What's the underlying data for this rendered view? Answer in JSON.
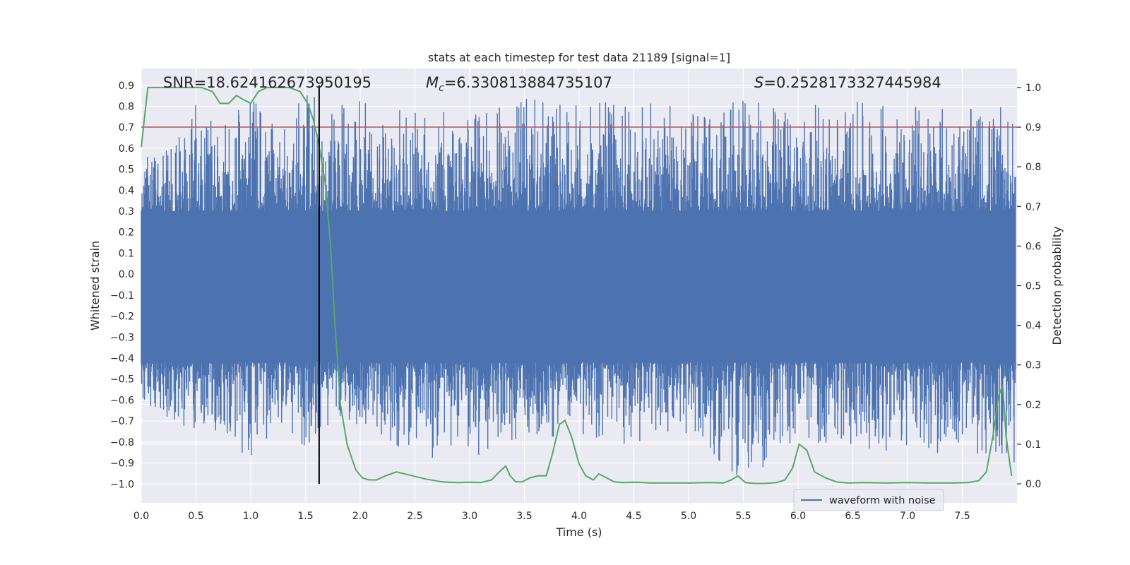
{
  "chart_data": {
    "type": "line",
    "title": "stats at each timestep for test data 21189 [signal=1]",
    "xlabel": "Time (s)",
    "ylabel": "Whitened strain",
    "y2label": "Detection probability",
    "xlim": [
      0.0,
      8.0
    ],
    "ylim": [
      -1.09,
      0.98
    ],
    "y2lim": [
      -0.048,
      1.048
    ],
    "x_ticks": [
      0.0,
      0.5,
      1.0,
      1.5,
      2.0,
      2.5,
      3.0,
      3.5,
      4.0,
      4.5,
      5.0,
      5.5,
      6.0,
      6.5,
      7.0,
      7.5
    ],
    "y_ticks": [
      -1.0,
      -0.9,
      -0.8,
      -0.7,
      -0.6,
      -0.5,
      -0.4,
      -0.3,
      -0.2,
      -0.1,
      0.0,
      0.1,
      0.2,
      0.3,
      0.4,
      0.5,
      0.6,
      0.7,
      0.8,
      0.9
    ],
    "y2_ticks": [
      0.0,
      0.1,
      0.2,
      0.3,
      0.4,
      0.5,
      0.6,
      0.7,
      0.8,
      0.9,
      1.0
    ],
    "threshold_y2": 0.9,
    "marker_time": 1.625,
    "waveform_envelope": {
      "x": [
        0.0,
        0.25,
        0.5,
        0.75,
        1.0,
        1.25,
        1.5,
        1.75,
        2.0,
        2.5,
        3.0,
        3.5,
        4.0,
        4.5,
        5.0,
        5.5,
        6.0,
        6.5,
        7.0,
        7.5,
        8.0
      ],
      "upper": [
        0.55,
        0.65,
        0.82,
        0.75,
        0.86,
        0.7,
        0.88,
        0.8,
        0.83,
        0.77,
        0.78,
        0.84,
        0.81,
        0.83,
        0.8,
        0.83,
        0.81,
        0.82,
        0.83,
        0.79,
        0.8
      ],
      "lower": [
        -0.6,
        -0.7,
        -0.8,
        -0.75,
        -0.94,
        -0.7,
        -0.86,
        -0.7,
        -0.72,
        -0.88,
        -0.88,
        -0.78,
        -0.77,
        -0.82,
        -0.77,
        -0.99,
        -0.81,
        -0.82,
        -0.86,
        -0.85,
        -0.93
      ]
    },
    "series": [
      {
        "name": "waveform with noise",
        "color": "#4c72b0",
        "axis": "left"
      },
      {
        "name": "Detection probability",
        "color": "#55a868",
        "axis": "right",
        "x": [
          0.0,
          0.06,
          0.15,
          0.25,
          0.4,
          0.55,
          0.65,
          0.72,
          0.8,
          0.87,
          0.93,
          1.0,
          1.07,
          1.15,
          1.25,
          1.35,
          1.45,
          1.52,
          1.57,
          1.62,
          1.68,
          1.73,
          1.77,
          1.82,
          1.88,
          1.96,
          2.02,
          2.08,
          2.15,
          2.23,
          2.33,
          2.45,
          2.6,
          2.75,
          2.9,
          3.0,
          3.1,
          3.2,
          3.27,
          3.33,
          3.37,
          3.42,
          3.48,
          3.55,
          3.62,
          3.7,
          3.76,
          3.82,
          3.87,
          3.93,
          4.0,
          4.06,
          4.13,
          4.18,
          4.25,
          4.32,
          4.4,
          4.5,
          4.65,
          4.8,
          5.0,
          5.2,
          5.32,
          5.39,
          5.45,
          5.52,
          5.6,
          5.7,
          5.8,
          5.88,
          5.95,
          6.01,
          6.08,
          6.15,
          6.25,
          6.35,
          6.45,
          6.6,
          6.8,
          7.0,
          7.2,
          7.4,
          7.55,
          7.65,
          7.72,
          7.78,
          7.83,
          7.87,
          7.9,
          7.95
        ],
        "values": [
          0.85,
          1.0,
          1.0,
          1.0,
          1.0,
          1.0,
          0.99,
          0.96,
          0.96,
          0.98,
          0.97,
          0.96,
          0.99,
          1.0,
          1.0,
          1.0,
          0.99,
          0.96,
          0.92,
          0.86,
          0.76,
          0.6,
          0.4,
          0.2,
          0.1,
          0.035,
          0.015,
          0.01,
          0.01,
          0.02,
          0.03,
          0.022,
          0.012,
          0.005,
          0.003,
          0.004,
          0.003,
          0.01,
          0.03,
          0.045,
          0.02,
          0.005,
          0.005,
          0.015,
          0.02,
          0.02,
          0.08,
          0.15,
          0.16,
          0.12,
          0.05,
          0.02,
          0.01,
          0.025,
          0.015,
          0.005,
          0.003,
          0.004,
          0.002,
          0.002,
          0.002,
          0.003,
          0.002,
          0.01,
          0.02,
          0.003,
          0.001,
          0.001,
          0.003,
          0.01,
          0.04,
          0.1,
          0.085,
          0.03,
          0.015,
          0.005,
          0.002,
          0.003,
          0.002,
          0.003,
          0.002,
          0.002,
          0.003,
          0.008,
          0.03,
          0.12,
          0.22,
          0.25,
          0.12,
          0.02
        ]
      }
    ],
    "annotations": [
      {
        "label": "SNR=18.624162673950195",
        "x": 0.2
      },
      {
        "prefix": "M",
        "sub": "c",
        "value": "=6.330813884735107",
        "x": 2.6
      },
      {
        "prefix": "S",
        "value": "=0.2528173327445984",
        "x": 5.6
      }
    ],
    "legend": {
      "label": "waveform with noise",
      "location": "lower-right"
    }
  }
}
